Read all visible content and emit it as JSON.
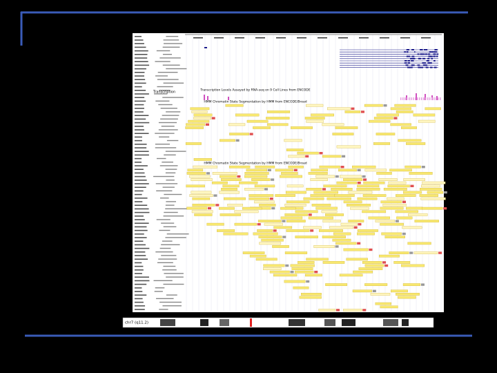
{
  "browser": {
    "tracks": [
      "Transcription Levels Assayed by RNA-seq on 9 Cell Lines from ENCODE",
      "HMM Chromatin State Segmentation by HMM from ENCODE/Broad",
      "HMM Chromatin State Segmentation by HMM from ENCODE/Broad"
    ],
    "side_label": "Transcription",
    "position": "chr7 (q11.2)"
  }
}
